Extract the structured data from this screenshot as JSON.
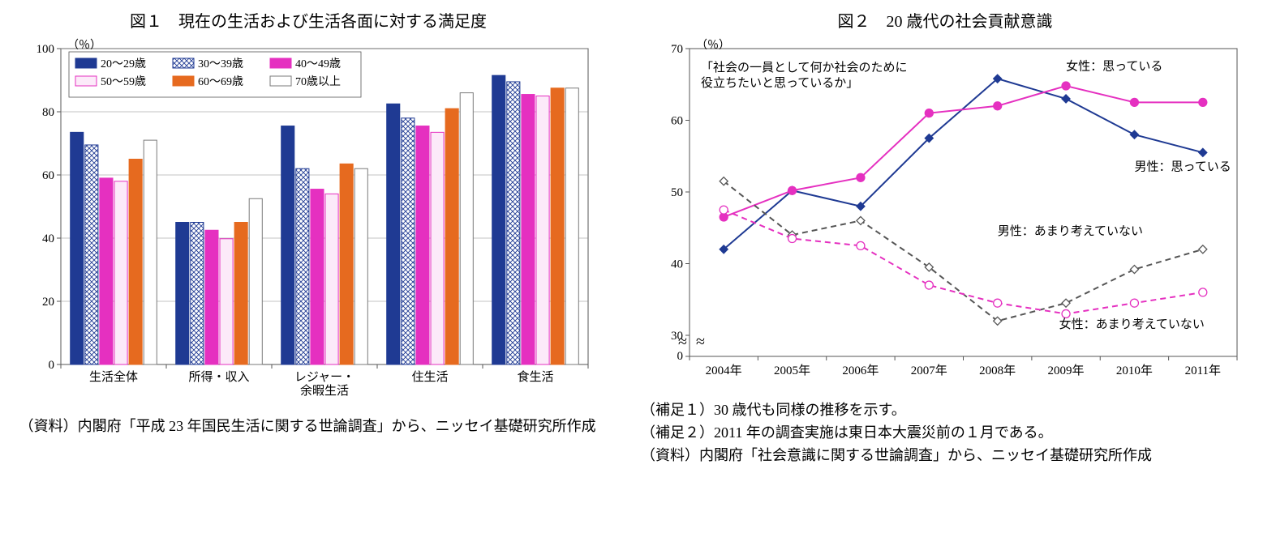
{
  "fig1": {
    "title": "図１　現在の生活および生活各面に対する満足度",
    "type": "bar",
    "y_unit": "（％）",
    "ylim": [
      0,
      100
    ],
    "ytick_step": 20,
    "categories": [
      "生活全体",
      "所得・収入",
      "レジャー・\n余暇生活",
      "住生活",
      "食生活"
    ],
    "series": [
      {
        "name": "20～29歳",
        "fill": "#1f3a93",
        "pattern": "solid",
        "border": "#1f3a93",
        "values": [
          73.5,
          45.0,
          75.5,
          82.5,
          91.5
        ]
      },
      {
        "name": "30～39歳",
        "fill": "#ffffff",
        "pattern": "cross",
        "border": "#1f3a93",
        "values": [
          69.5,
          45.0,
          62.0,
          78.0,
          89.5
        ]
      },
      {
        "name": "40～49歳",
        "fill": "#e530c0",
        "pattern": "solid",
        "border": "#e530c0",
        "values": [
          59.0,
          42.5,
          55.5,
          75.5,
          85.5
        ]
      },
      {
        "name": "50～59歳",
        "fill": "#fceaf9",
        "pattern": "solid",
        "border": "#e530c0",
        "values": [
          58.0,
          39.8,
          54.0,
          73.5,
          85.0
        ]
      },
      {
        "name": "60～69歳",
        "fill": "#e66a1f",
        "pattern": "solid",
        "border": "#e66a1f",
        "values": [
          65.0,
          45.0,
          63.5,
          81.0,
          87.5
        ]
      },
      {
        "name": "70歳以上",
        "fill": "#ffffff",
        "pattern": "solid",
        "border": "#7a7a7a",
        "values": [
          71.0,
          52.5,
          62.0,
          86.0,
          87.5
        ]
      }
    ],
    "axis_fontsize": 15,
    "legend_fontsize": 14,
    "grid_color": "#888888",
    "plot_bg": "#ffffff",
    "caption_lines": [
      "（資料）内閣府「平成 23 年国民生活に関する世論調査」から、ニッセイ基礎研究所作成"
    ]
  },
  "fig2": {
    "title": "図２　20 歳代の社会貢献意識",
    "type": "line",
    "y_unit": "（％）",
    "ylim": [
      30,
      70
    ],
    "ytick_step": 10,
    "axis_break": true,
    "x_labels": [
      "2004年",
      "2005年",
      "2006年",
      "2007年",
      "2008年",
      "2009年",
      "2010年",
      "2011年"
    ],
    "note_box": "「社会の一員として何か社会のために\n 役立ちたいと思っているか」",
    "series": [
      {
        "name": "男性：思っている",
        "color": "#1f3a93",
        "dash": "solid",
        "marker": "diamond-filled",
        "values": [
          42.0,
          50.2,
          48.0,
          57.5,
          65.8,
          63.0,
          58.0,
          55.5
        ],
        "label_xy": [
          6.0,
          53
        ]
      },
      {
        "name": "女性：思っている",
        "color": "#e530c0",
        "dash": "solid",
        "marker": "circle-filled",
        "values": [
          46.5,
          50.2,
          52.0,
          61.0,
          62.0,
          64.8,
          62.5,
          62.5
        ],
        "label_xy": [
          5.0,
          67
        ]
      },
      {
        "name": "男性：あまり考えていない",
        "color": "#555555",
        "dash": "dashed",
        "marker": "diamond-open",
        "values": [
          51.5,
          44.0,
          46.0,
          39.5,
          32.0,
          34.5,
          39.2,
          42.0
        ],
        "label_xy": [
          4.0,
          44
        ]
      },
      {
        "name": "女性：あまり考えていない",
        "color": "#e530c0",
        "dash": "dashed",
        "marker": "circle-open",
        "values": [
          47.5,
          43.5,
          42.5,
          37.0,
          34.5,
          33.0,
          34.5,
          36.0
        ],
        "label_xy": [
          4.9,
          31
        ]
      }
    ],
    "axis_fontsize": 15,
    "grid_color": "#888888",
    "plot_bg": "#ffffff",
    "caption_lines": [
      "（補足１）30 歳代も同様の推移を示す。",
      "（補足２）2011 年の調査実施は東日本大震災前の１月である。",
      "（資料）内閣府「社会意識に関する世論調査」から、ニッセイ基礎研究所作成"
    ]
  }
}
